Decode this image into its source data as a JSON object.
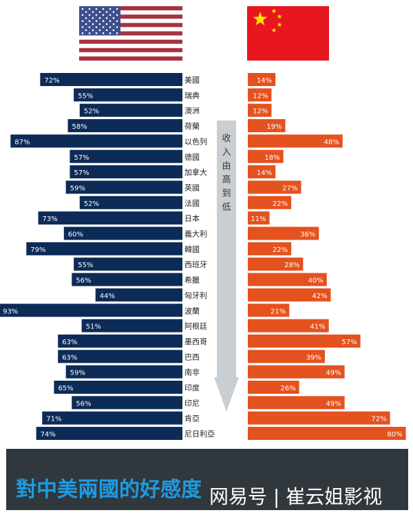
{
  "chart_data": {
    "type": "bar",
    "layout": "back-to-back horizontal bars",
    "categories": [
      "美國",
      "瑞典",
      "澳洲",
      "荷蘭",
      "以色列",
      "德國",
      "加拿大",
      "英國",
      "法國",
      "日本",
      "義大利",
      "韓國",
      "西班牙",
      "希臘",
      "匈牙利",
      "波蘭",
      "阿根廷",
      "墨西哥",
      "巴西",
      "南非",
      "印度",
      "印尼",
      "肯亞",
      "尼日利亞"
    ],
    "series": [
      {
        "flag": "us",
        "color": "#0d2b57",
        "values": [
          72,
          55,
          52,
          58,
          87,
          57,
          57,
          59,
          52,
          73,
          60,
          79,
          55,
          56,
          44,
          93,
          51,
          63,
          63,
          59,
          65,
          56,
          71,
          74
        ]
      },
      {
        "flag": "china",
        "color": "#e4521f",
        "values": [
          14,
          12,
          12,
          19,
          48,
          18,
          14,
          27,
          22,
          11,
          36,
          22,
          28,
          40,
          42,
          21,
          41,
          57,
          39,
          49,
          26,
          49,
          72,
          80
        ]
      }
    ],
    "value_suffix": "%",
    "arrow_label": "收入由高到低",
    "title": "對中美兩國的好感度"
  },
  "watermark": "网易号 | 崔云姐影视",
  "colors": {
    "banner": "#30373d",
    "title": "#1e9be0",
    "arrow": "#c9ced2"
  }
}
